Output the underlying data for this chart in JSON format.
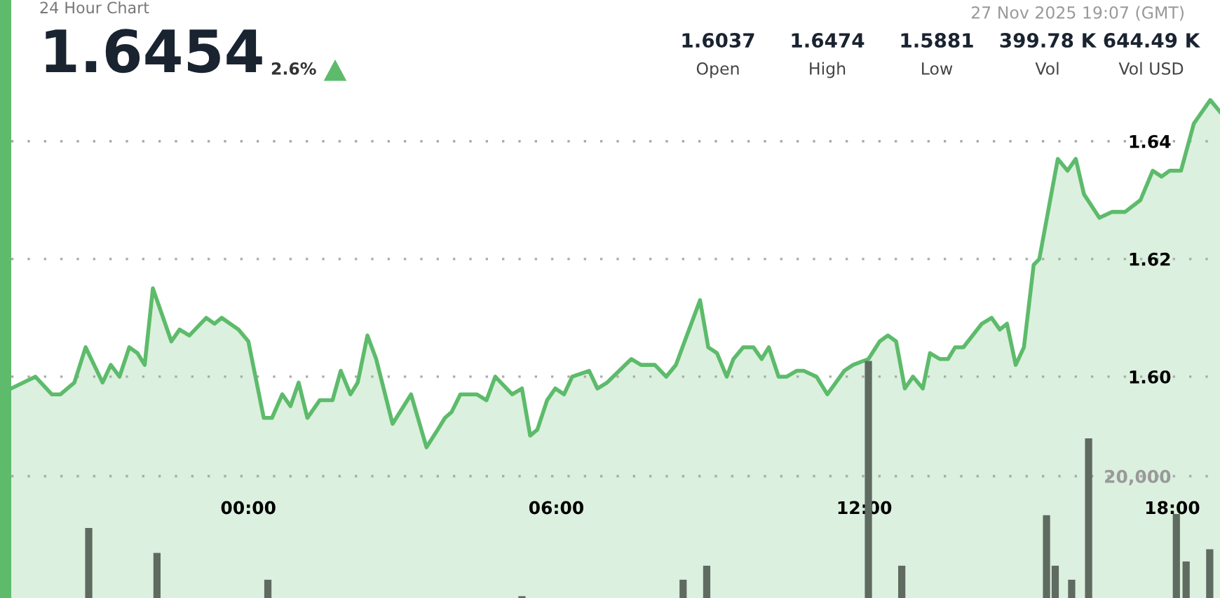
{
  "chart_data": {
    "type": "area",
    "title": "24 Hour Chart",
    "subtitle": "27 Nov 2025 19:07 (GMT)",
    "annotations": [
      "1.6454",
      "2.6%",
      "1.6037",
      "Open",
      "1.6474",
      "High",
      "1.5881",
      "Low",
      "399.78 K",
      "Vol",
      "644.49 K",
      "Vol USD"
    ],
    "xlim": [
      -4.62,
      18.93
    ],
    "xticks": [
      {
        "value": 0,
        "label": "00:00"
      },
      {
        "value": 6,
        "label": "06:00"
      },
      {
        "value": 12,
        "label": "12:00"
      },
      {
        "value": 18,
        "label": "18:00"
      }
    ],
    "ylim": [
      1.5624,
      1.664
    ],
    "yticks": [
      {
        "value": 1.6,
        "label": "1.60"
      },
      {
        "value": 1.62,
        "label": "1.62"
      },
      {
        "value": 1.64,
        "label": "1.64"
      }
    ],
    "y2lim": [
      0,
      98160
    ],
    "y2ticks": [
      {
        "value": 20000,
        "label": "20,000"
      }
    ],
    "grid": "y",
    "series": [
      {
        "color": "#5dbb6b",
        "x": [
          -4.62,
          -4.15,
          -3.83,
          -3.66,
          -3.39,
          -3.17,
          -2.84,
          -2.68,
          -2.51,
          -2.32,
          -2.16,
          -2.02,
          -1.86,
          -1.5,
          -1.34,
          -1.15,
          -0.82,
          -0.66,
          -0.52,
          -0.19,
          0,
          0.3,
          0.46,
          0.66,
          0.82,
          0.98,
          1.15,
          1.39,
          1.53,
          1.64,
          1.8,
          1.99,
          2.13,
          2.32,
          2.49,
          2.81,
          3.17,
          3.47,
          3.69,
          3.83,
          3.96,
          4.13,
          4.45,
          4.64,
          4.81,
          5.14,
          5.33,
          5.49,
          5.63,
          5.82,
          5.98,
          6.15,
          6.31,
          6.64,
          6.8,
          6.99,
          7.46,
          7.65,
          7.92,
          8.14,
          8.33,
          8.5,
          8.8,
          8.96,
          9.13,
          9.32,
          9.45,
          9.64,
          9.84,
          10.0,
          10.14,
          10.33,
          10.49,
          10.68,
          10.82,
          11.07,
          11.28,
          11.61,
          11.78,
          12.08,
          12.3,
          12.46,
          12.62,
          12.79,
          12.95,
          13.14,
          13.28,
          13.47,
          13.63,
          13.77,
          13.93,
          14.29,
          14.48,
          14.64,
          14.78,
          14.95,
          15.11,
          15.3,
          15.41,
          15.6,
          15.77,
          15.96,
          16.12,
          16.28,
          16.58,
          16.83,
          17.08,
          17.38,
          17.62,
          17.79,
          17.95,
          18.17,
          18.42,
          18.74,
          18.93
        ],
        "values": [
          1.598,
          1.6,
          1.597,
          1.597,
          1.599,
          1.605,
          1.599,
          1.602,
          1.6,
          1.605,
          1.604,
          1.602,
          1.615,
          1.606,
          1.608,
          1.607,
          1.61,
          1.609,
          1.61,
          1.608,
          1.606,
          1.593,
          1.593,
          1.597,
          1.595,
          1.599,
          1.593,
          1.596,
          1.596,
          1.596,
          1.601,
          1.597,
          1.599,
          1.607,
          1.603,
          1.592,
          1.597,
          1.588,
          1.591,
          1.593,
          1.594,
          1.597,
          1.597,
          1.596,
          1.6,
          1.597,
          1.598,
          1.59,
          1.591,
          1.596,
          1.598,
          1.597,
          1.6,
          1.601,
          1.598,
          1.599,
          1.603,
          1.602,
          1.602,
          1.6,
          1.602,
          1.606,
          1.613,
          1.605,
          1.604,
          1.6,
          1.603,
          1.605,
          1.605,
          1.603,
          1.605,
          1.6,
          1.6,
          1.601,
          1.601,
          1.6,
          1.597,
          1.601,
          1.602,
          1.603,
          1.606,
          1.607,
          1.606,
          1.598,
          1.6,
          1.598,
          1.604,
          1.603,
          1.603,
          1.605,
          1.605,
          1.609,
          1.61,
          1.608,
          1.609,
          1.602,
          1.605,
          1.619,
          1.62,
          1.629,
          1.637,
          1.635,
          1.637,
          1.631,
          1.627,
          1.628,
          1.628,
          1.63,
          1.635,
          1.634,
          1.635,
          1.635,
          1.643,
          1.647,
          1.645
        ]
      },
      {
        "type": "bar",
        "axis": "y2",
        "color": "#5f6b60",
        "x": [
          -3.11,
          -1.78,
          0.38,
          5.33,
          8.47,
          8.93,
          12.08,
          12.73,
          15.55,
          15.72,
          16.04,
          16.37,
          18.08,
          18.27,
          18.73
        ],
        "values": [
          11500,
          7400,
          3000,
          300,
          3000,
          5300,
          38900,
          5300,
          13600,
          5300,
          3000,
          26200,
          13800,
          6000,
          8000
        ]
      }
    ]
  }
}
